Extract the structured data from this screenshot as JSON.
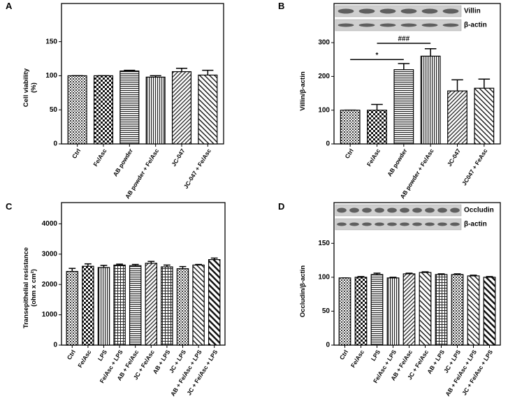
{
  "chart_data": [
    {
      "type": "bar",
      "panel": "A",
      "ylabel": [
        "Cell viability",
        "(%)"
      ],
      "categories": [
        "Ctrl",
        "Fe/Asc",
        "AB powder",
        "AB powder + Fe/Asc",
        "JC-047",
        "JC-047 + Fe/Asc"
      ],
      "values": [
        100,
        100,
        107,
        98,
        106,
        101
      ],
      "errors": [
        0,
        0,
        1,
        2,
        5,
        7
      ],
      "ylim": [
        0,
        206
      ],
      "yticks": [
        0,
        50,
        100,
        150
      ],
      "color": "#000000"
    },
    {
      "type": "bar",
      "panel": "B",
      "ylabel": [
        "Villin/β-actin"
      ],
      "blot_labels": [
        "Villin",
        "β-actin"
      ],
      "annotations": [
        "*",
        "###"
      ],
      "categories": [
        "Ctrl",
        "Fe/Asc",
        "AB powder",
        "AB powder + Fe/Asc",
        "JC-047",
        "JC047 + FeAsc"
      ],
      "values": [
        100,
        100,
        220,
        260,
        157,
        165
      ],
      "errors": [
        0,
        17,
        18,
        22,
        33,
        27
      ],
      "ylim": [
        0,
        416
      ],
      "yticks": [
        0,
        100,
        200,
        300
      ],
      "color": "#000000"
    },
    {
      "type": "bar",
      "panel": "C",
      "ylabel": [
        "Transepithelial resistance",
        "(ohm x cm²)"
      ],
      "categories": [
        "Ctrl",
        "Fe/Asc",
        "LPS",
        "Fe/Asc + LPS",
        "AB + Fe/Asc",
        "JC + Fe/Asc",
        "AB + LPS",
        "JC + LPS",
        "AB + Fe/Asc + LPS",
        "JC + Fe/Asc + LPS"
      ],
      "values": [
        2430,
        2600,
        2560,
        2640,
        2620,
        2700,
        2580,
        2520,
        2640,
        2820
      ],
      "errors": [
        100,
        80,
        70,
        30,
        40,
        60,
        60,
        70,
        20,
        50
      ],
      "ylim": [
        0,
        4700
      ],
      "yticks": [
        0,
        1000,
        2000,
        3000,
        4000
      ],
      "color": "#000000"
    },
    {
      "type": "bar",
      "panel": "D",
      "ylabel": [
        "Occludin/β-actin"
      ],
      "blot_labels": [
        "Occludin",
        "β-actin"
      ],
      "categories": [
        "Ctrl",
        "Fe/Asc",
        "LPS",
        "Fe/Asc + LPS",
        "AB + Fe/Asc",
        "JC + Fe/Asc",
        "AB + LPS",
        "JC + LPS",
        "AB + Fe/Asc + LPS",
        "JC + Fe/Asc + LPS"
      ],
      "values": [
        99,
        100,
        104,
        99,
        105,
        107,
        104,
        104,
        102,
        100
      ],
      "errors": [
        0,
        1,
        2,
        1,
        1,
        1,
        1,
        1,
        1,
        1
      ],
      "ylim": [
        0,
        210
      ],
      "yticks": [
        0,
        50,
        100,
        150
      ],
      "color": "#000000"
    }
  ]
}
